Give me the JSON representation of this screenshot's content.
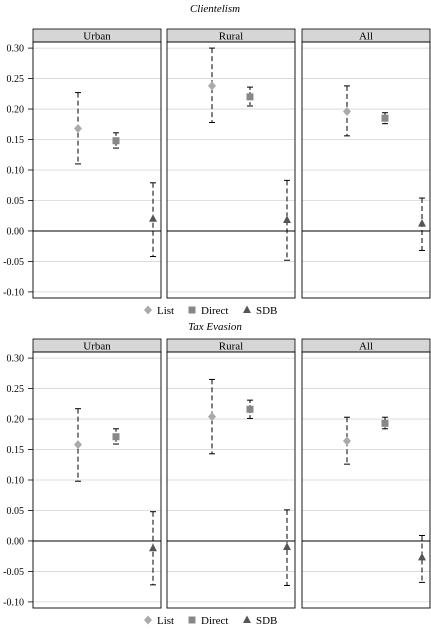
{
  "chart_data": [
    {
      "type": "scatter",
      "title": "Clientelism",
      "panels": [
        "Urban",
        "Rural",
        "All"
      ],
      "ylim": [
        -0.11,
        0.31
      ],
      "yticks": [
        "0.30",
        "0.25",
        "0.20",
        "0.15",
        "0.10",
        "0.05",
        "0.00",
        "-0.05",
        "-0.10"
      ],
      "ytick_values": [
        0.3,
        0.25,
        0.2,
        0.15,
        0.1,
        0.05,
        0.0,
        -0.05,
        -0.1
      ],
      "grid": true,
      "legend_placement": "bottom",
      "series": [
        {
          "name": "List",
          "marker": "diamond",
          "color": "#aaaaaa",
          "values": [
            0.168,
            0.238,
            0.196
          ],
          "lower": [
            0.11,
            0.178,
            0.156
          ],
          "upper": [
            0.227,
            0.3,
            0.238
          ]
        },
        {
          "name": "Direct",
          "marker": "square",
          "color": "#888888",
          "values": [
            0.148,
            0.22,
            0.185
          ],
          "lower": [
            0.136,
            0.205,
            0.176
          ],
          "upper": [
            0.161,
            0.236,
            0.194
          ]
        },
        {
          "name": "SDB",
          "marker": "triangle",
          "color": "#555555",
          "values": [
            0.02,
            0.018,
            0.012
          ],
          "lower": [
            -0.042,
            -0.048,
            -0.032
          ],
          "upper": [
            0.079,
            0.083,
            0.054
          ]
        }
      ]
    },
    {
      "type": "scatter",
      "title": "Tax Evasion",
      "panels": [
        "Urban",
        "Rural",
        "All"
      ],
      "ylim": [
        -0.11,
        0.31
      ],
      "yticks": [
        "0.30",
        "0.25",
        "0.20",
        "0.15",
        "0.10",
        "0.05",
        "0.00",
        "-0.05",
        "-0.10"
      ],
      "ytick_values": [
        0.3,
        0.25,
        0.2,
        0.15,
        0.1,
        0.05,
        0.0,
        -0.05,
        -0.1
      ],
      "grid": true,
      "legend_placement": "bottom",
      "series": [
        {
          "name": "List",
          "marker": "diamond",
          "color": "#aaaaaa",
          "values": [
            0.158,
            0.204,
            0.164
          ],
          "lower": [
            0.098,
            0.143,
            0.126
          ],
          "upper": [
            0.217,
            0.265,
            0.203
          ]
        },
        {
          "name": "Direct",
          "marker": "square",
          "color": "#888888",
          "values": [
            0.171,
            0.216,
            0.193
          ],
          "lower": [
            0.159,
            0.201,
            0.184
          ],
          "upper": [
            0.184,
            0.231,
            0.203
          ]
        },
        {
          "name": "SDB",
          "marker": "triangle",
          "color": "#555555",
          "values": [
            -0.012,
            -0.01,
            -0.027
          ],
          "lower": [
            -0.072,
            -0.073,
            -0.068
          ],
          "upper": [
            0.048,
            0.051,
            0.009
          ]
        }
      ]
    }
  ]
}
